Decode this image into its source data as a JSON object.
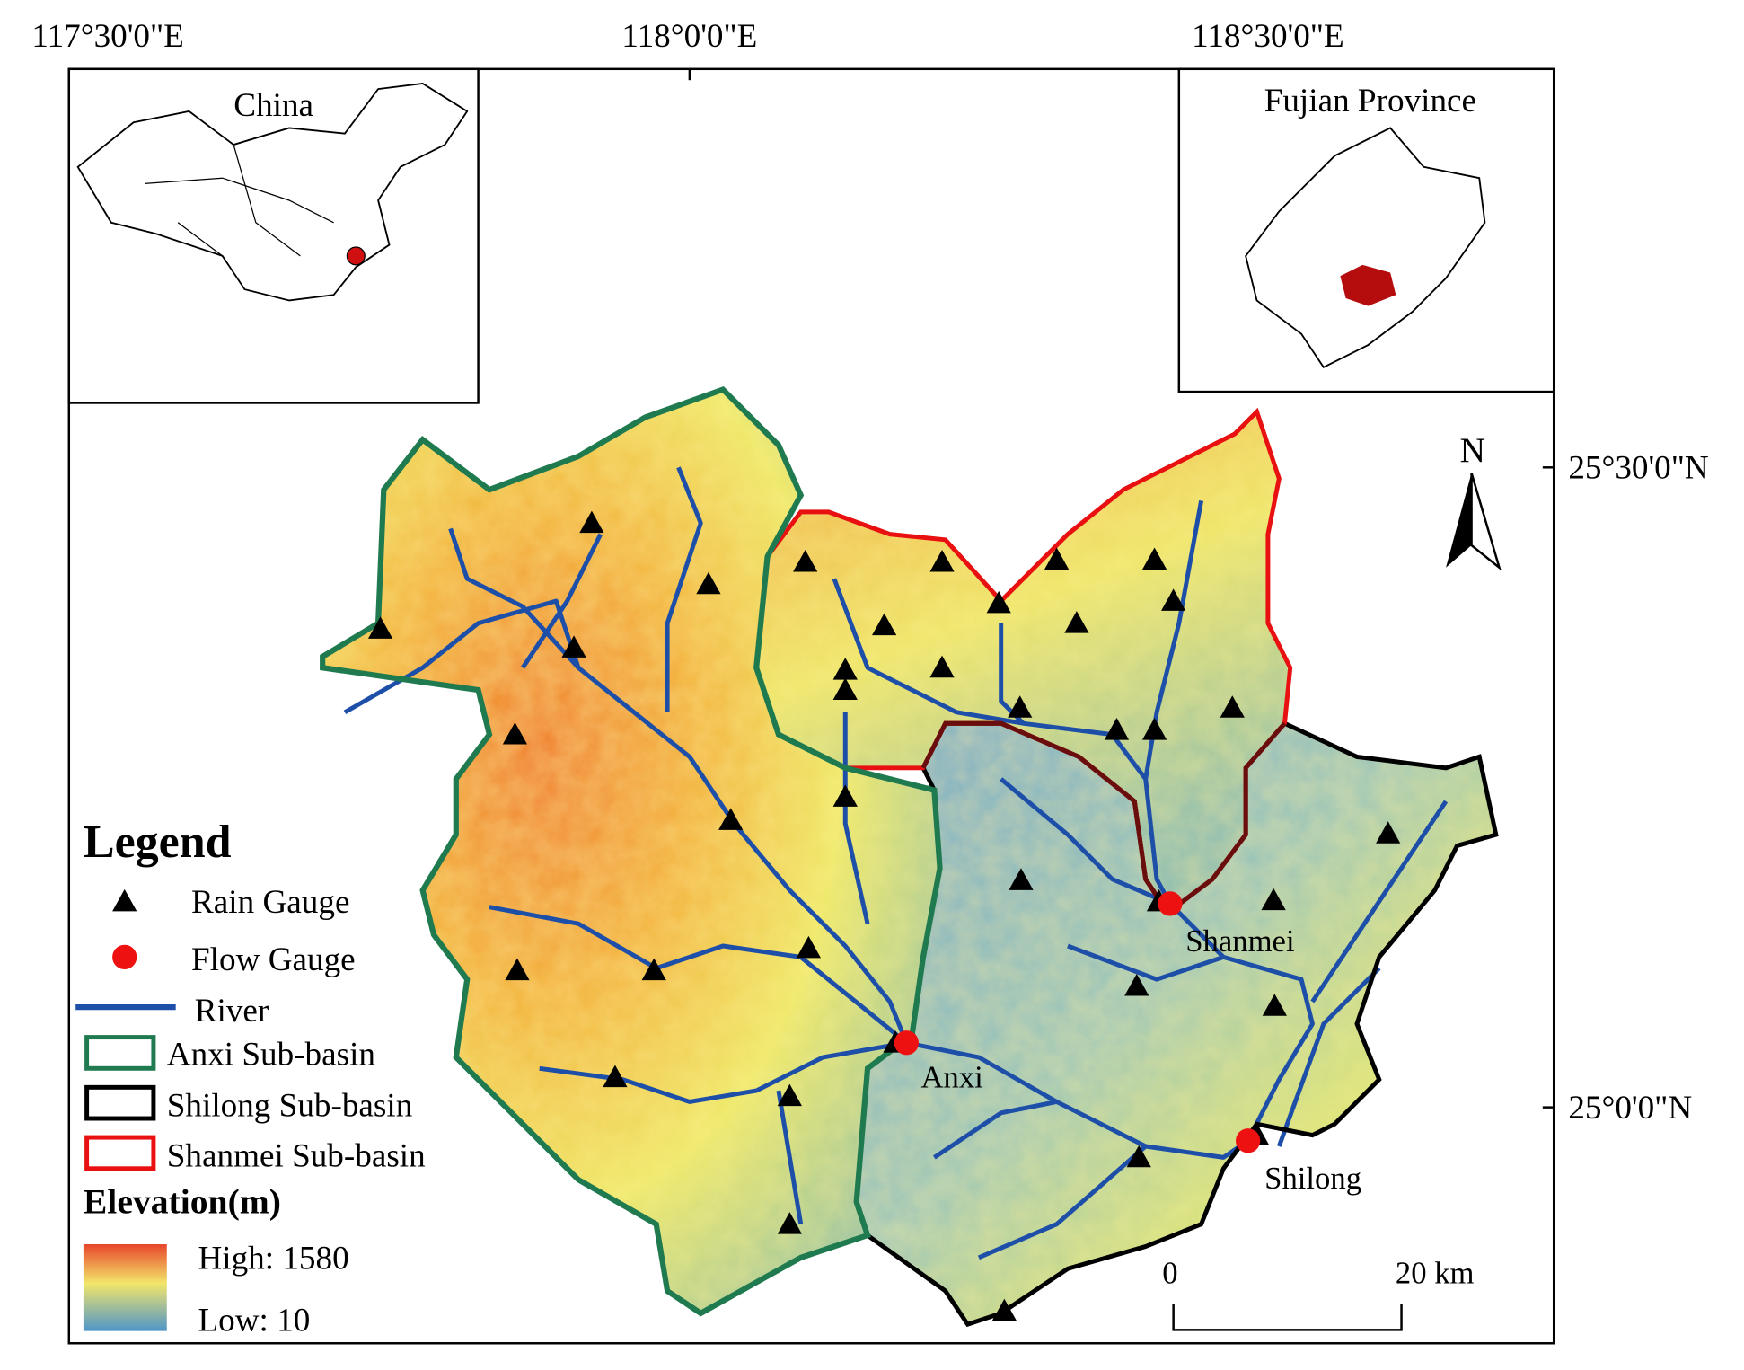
{
  "map": {
    "lon_labels": [
      "117°30'0\"E",
      "118°0'0\"E",
      "118°30'0\"E"
    ],
    "lat_labels": [
      "25°30'0\"N",
      "25°0'0\"N"
    ],
    "north": "N",
    "inset_china": "China",
    "inset_fujian": "Fujian Province",
    "stations": [
      "Shanmei",
      "Anxi",
      "Shilong"
    ],
    "scale_start": "0",
    "scale_end": "20 km"
  },
  "legend": {
    "title": "Legend",
    "items": [
      "Rain Gauge",
      "Flow Gauge",
      "River",
      "Anxi Sub-basin",
      "Shilong Sub-basin",
      "Shanmei Sub-basin"
    ],
    "elevation_title": "Elevation(m)",
    "high": "High: 1580",
    "low": "Low: 10"
  }
}
